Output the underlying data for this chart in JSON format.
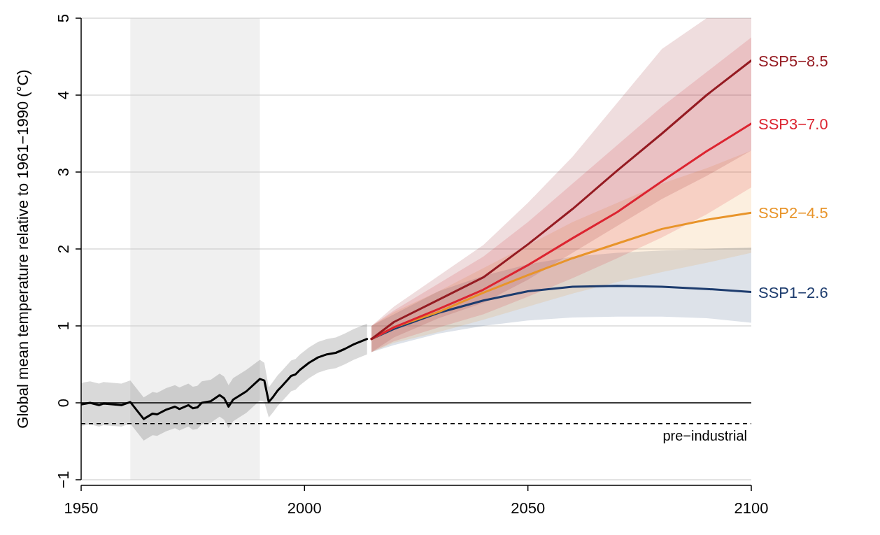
{
  "chart_data": {
    "type": "line",
    "ylabel": "Global mean temperature relative to 1961−1990 (°C)",
    "xlim": [
      1950,
      2100
    ],
    "xticks": [
      1950,
      2000,
      2050,
      2100
    ],
    "ylim": [
      -1,
      5
    ],
    "yticks": [
      {
        "value": -1,
        "label": "−1"
      },
      0,
      1,
      2,
      3,
      4,
      5
    ],
    "grid": "y",
    "line_style": "solid",
    "marker": "none",
    "series": [
      {
        "color": "#000000",
        "x": [
          1950,
          1952,
          1954,
          1955,
          1959,
          1961,
          1964,
          1966,
          1967,
          1969,
          1971,
          1972,
          1974,
          1975,
          1976,
          1977,
          1979,
          1981,
          1982,
          1983,
          1984,
          1987,
          1990,
          1991,
          1992,
          1993,
          1994,
          1995,
          1997,
          1998,
          1999,
          2001,
          2003,
          2005,
          2007,
          2009,
          2011,
          2014
        ],
        "values": [
          -0.02,
          0,
          -0.03,
          -0.01,
          -0.03,
          0.01,
          -0.21,
          -0.14,
          -0.15,
          -0.09,
          -0.05,
          -0.08,
          -0.03,
          -0.07,
          -0.06,
          0,
          0.02,
          0.1,
          0.06,
          -0.05,
          0.04,
          0.15,
          0.31,
          0.29,
          0.01,
          0.08,
          0.16,
          0.22,
          0.35,
          0.37,
          0.43,
          0.52,
          0.59,
          0.63,
          0.65,
          0.7,
          0.76,
          0.83
        ],
        "upper": [
          0.26,
          0.28,
          0.25,
          0.27,
          0.25,
          0.29,
          0.07,
          0.14,
          0.13,
          0.19,
          0.23,
          0.2,
          0.25,
          0.21,
          0.22,
          0.28,
          0.3,
          0.38,
          0.34,
          0.23,
          0.32,
          0.43,
          0.56,
          0.52,
          0.2,
          0.28,
          0.36,
          0.42,
          0.55,
          0.57,
          0.63,
          0.72,
          0.79,
          0.83,
          0.85,
          0.9,
          0.96,
          1.03
        ],
        "lower": [
          -0.3,
          -0.28,
          -0.31,
          -0.29,
          -0.31,
          -0.27,
          -0.49,
          -0.42,
          -0.43,
          -0.37,
          -0.33,
          -0.36,
          -0.31,
          -0.35,
          -0.34,
          -0.28,
          -0.26,
          -0.18,
          -0.22,
          -0.33,
          -0.24,
          -0.13,
          0.03,
          0.01,
          -0.19,
          -0.12,
          -0.04,
          0.02,
          0.15,
          0.17,
          0.23,
          0.32,
          0.39,
          0.43,
          0.45,
          0.5,
          0.56,
          0.63
        ]
      },
      {
        "name": "SSP1−2.6",
        "color": "#1d3c6e",
        "x": [
          2015,
          2020,
          2030,
          2040,
          2050,
          2060,
          2070,
          2080,
          2090,
          2100
        ],
        "values": [
          0.83,
          0.96,
          1.17,
          1.33,
          1.45,
          1.51,
          1.52,
          1.51,
          1.48,
          1.44
        ],
        "upper": [
          1.0,
          1.15,
          1.45,
          1.65,
          1.8,
          1.9,
          1.95,
          1.98,
          2.0,
          2.02
        ],
        "lower": [
          0.66,
          0.75,
          0.9,
          1.0,
          1.07,
          1.11,
          1.12,
          1.12,
          1.1,
          1.04
        ]
      },
      {
        "name": "SSP2−4.5",
        "color": "#e8942a",
        "x": [
          2015,
          2020,
          2030,
          2040,
          2050,
          2060,
          2070,
          2080,
          2090,
          2100
        ],
        "values": [
          0.83,
          0.98,
          1.18,
          1.43,
          1.66,
          1.88,
          2.07,
          2.26,
          2.38,
          2.47
        ],
        "upper": [
          1.0,
          1.18,
          1.45,
          1.75,
          2.05,
          2.35,
          2.6,
          2.85,
          3.05,
          3.28
        ],
        "lower": [
          0.66,
          0.78,
          0.92,
          1.08,
          1.25,
          1.42,
          1.57,
          1.7,
          1.82,
          1.95
        ]
      },
      {
        "name": "SSP3−7.0",
        "color": "#dc2430",
        "x": [
          2015,
          2020,
          2030,
          2040,
          2050,
          2060,
          2070,
          2080,
          2090,
          2100
        ],
        "values": [
          0.83,
          0.98,
          1.22,
          1.47,
          1.79,
          2.14,
          2.48,
          2.88,
          3.27,
          3.63
        ],
        "upper": [
          1.0,
          1.2,
          1.55,
          1.9,
          2.35,
          2.85,
          3.35,
          3.85,
          4.3,
          4.75
        ],
        "lower": [
          0.66,
          0.8,
          0.98,
          1.15,
          1.38,
          1.62,
          1.88,
          2.15,
          2.45,
          2.8
        ]
      },
      {
        "name": "SSP5−8.5",
        "color": "#951b22",
        "x": [
          2015,
          2020,
          2030,
          2040,
          2050,
          2060,
          2070,
          2080,
          2090,
          2100
        ],
        "values": [
          0.83,
          1.05,
          1.34,
          1.63,
          2.06,
          2.52,
          3.02,
          3.5,
          4.0,
          4.45
        ],
        "upper": [
          1.0,
          1.25,
          1.65,
          2.05,
          2.6,
          3.2,
          3.9,
          4.6,
          5,
          5
        ],
        "lower": [
          0.66,
          0.85,
          1.1,
          1.3,
          1.6,
          1.95,
          2.3,
          2.65,
          2.95,
          3.28
        ]
      }
    ],
    "bands": [
      {
        "axis": "x",
        "from": 1961,
        "to": 1990,
        "color": "#f0f0f0"
      }
    ],
    "ref_lines": [
      {
        "axis": "y",
        "value": 0,
        "color": "#000000",
        "line_style": "solid"
      },
      {
        "axis": "y",
        "value": -0.27,
        "label": "pre−industrial",
        "color": "#000000",
        "line_style": "dashed"
      }
    ]
  }
}
